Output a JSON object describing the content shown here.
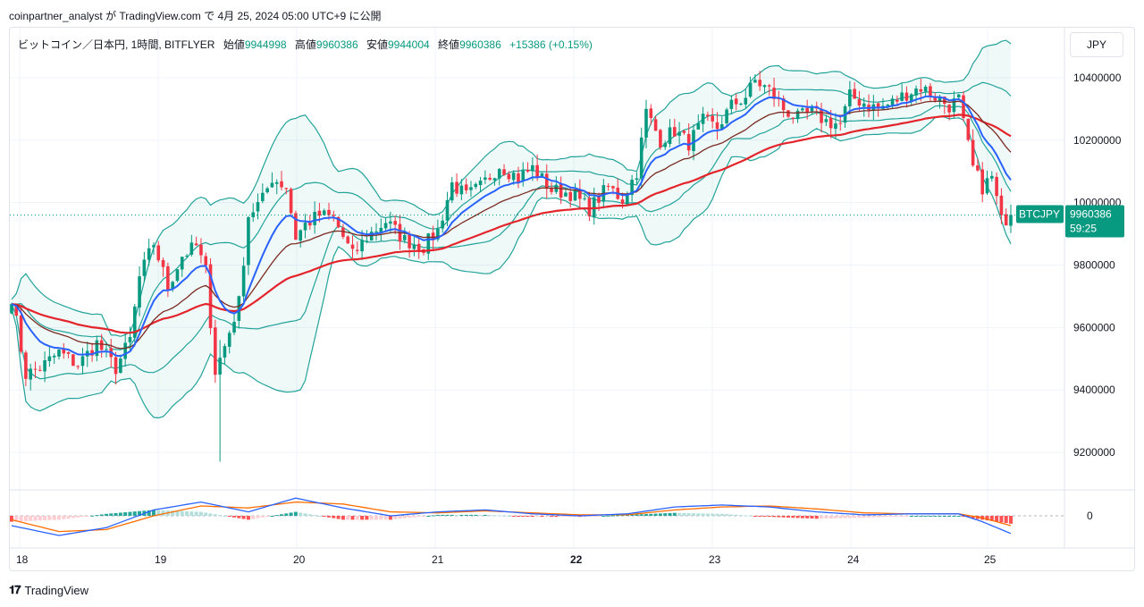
{
  "header": {
    "attribution": "coinpartner_analyst が TradingView.com で 4月 25, 2024 05:00 UTC+9 に公開"
  },
  "legend": {
    "title": "ビットコイン／日本円, 1時間, BITFLYER",
    "open_label": "始値",
    "open": "9944998",
    "high_label": "高値",
    "high": "9960386",
    "low_label": "安値",
    "low": "9944004",
    "close_label": "終値",
    "close": "9960386",
    "change": "+15386 (+0.15%)"
  },
  "currency_button": "JPY",
  "price_tag": {
    "symbol": "BTCJPY",
    "price": "9960386",
    "countdown": "59:25"
  },
  "footer": {
    "brand": "TradingView"
  },
  "colors": {
    "up": "#089981",
    "down": "#f23645",
    "band": "#22a39a",
    "ema_short": "#2962ff",
    "ema_mid": "#7b2b22",
    "ema_long": "#e3242b",
    "macd": "#2962ff",
    "signal": "#ff6d00"
  },
  "chart_data": [
    {
      "type": "candlestick",
      "symbol": "BTCJPY",
      "exchange": "BITFLYER",
      "timeframe": "1時間",
      "x_ticks": [
        "18",
        "19",
        "20",
        "21",
        "22",
        "23",
        "24",
        "25"
      ],
      "y_ticks": [
        "10400000",
        "10200000",
        "10000000",
        "9800000",
        "9600000",
        "9400000",
        "9200000"
      ],
      "ylim": [
        9080000,
        10560000
      ],
      "last_price": 9960386,
      "close_path": [
        [
          0,
          9700000
        ],
        [
          3,
          9450000
        ],
        [
          6,
          9470000
        ],
        [
          10,
          9520000
        ],
        [
          14,
          9480000
        ],
        [
          18,
          9550000
        ],
        [
          22,
          9470000
        ],
        [
          25,
          9560000
        ],
        [
          27,
          9760000
        ],
        [
          30,
          9870000
        ],
        [
          33,
          9730000
        ],
        [
          36,
          9830000
        ],
        [
          39,
          9860000
        ],
        [
          41,
          9780000
        ],
        [
          43,
          9460000
        ],
        [
          45,
          9540000
        ],
        [
          48,
          9680000
        ],
        [
          50,
          9960000
        ],
        [
          53,
          10010000
        ],
        [
          55,
          10080000
        ],
        [
          58,
          10050000
        ],
        [
          60,
          9890000
        ],
        [
          62,
          9930000
        ],
        [
          65,
          9960000
        ],
        [
          68,
          9950000
        ],
        [
          72,
          9830000
        ],
        [
          75,
          9890000
        ],
        [
          79,
          9940000
        ],
        [
          83,
          9880000
        ],
        [
          87,
          9860000
        ],
        [
          90,
          9910000
        ],
        [
          93,
          10060000
        ],
        [
          96,
          10020000
        ],
        [
          99,
          10050000
        ],
        [
          103,
          10120000
        ],
        [
          107,
          10080000
        ],
        [
          110,
          10110000
        ],
        [
          114,
          10040000
        ],
        [
          118,
          10030000
        ],
        [
          122,
          9980000
        ],
        [
          126,
          10050000
        ],
        [
          129,
          10010000
        ],
        [
          132,
          10100000
        ],
        [
          134,
          10290000
        ],
        [
          137,
          10200000
        ],
        [
          140,
          10230000
        ],
        [
          143,
          10190000
        ],
        [
          146,
          10260000
        ],
        [
          149,
          10240000
        ],
        [
          152,
          10310000
        ],
        [
          155,
          10340000
        ],
        [
          157,
          10390000
        ],
        [
          160,
          10360000
        ],
        [
          163,
          10300000
        ],
        [
          166,
          10270000
        ],
        [
          169,
          10290000
        ],
        [
          172,
          10260000
        ],
        [
          175,
          10250000
        ],
        [
          177,
          10340000
        ],
        [
          180,
          10320000
        ],
        [
          183,
          10300000
        ],
        [
          186,
          10320000
        ],
        [
          189,
          10350000
        ],
        [
          192,
          10370000
        ],
        [
          195,
          10340000
        ],
        [
          198,
          10310000
        ],
        [
          200,
          10330000
        ],
        [
          201,
          10250000
        ],
        [
          203,
          10110000
        ],
        [
          205,
          10050000
        ],
        [
          207,
          10080000
        ],
        [
          209,
          9940000
        ],
        [
          211,
          9960386
        ]
      ]
    },
    {
      "type": "macd",
      "y_ticks": [
        "0"
      ],
      "macd_path": [
        [
          0,
          -0.5
        ],
        [
          10,
          -1.0
        ],
        [
          20,
          -0.6
        ],
        [
          30,
          0.3
        ],
        [
          40,
          0.7
        ],
        [
          50,
          0.2
        ],
        [
          60,
          0.9
        ],
        [
          70,
          0.4
        ],
        [
          80,
          0.0
        ],
        [
          90,
          0.2
        ],
        [
          100,
          0.3
        ],
        [
          110,
          0.1
        ],
        [
          120,
          0.0
        ],
        [
          130,
          0.1
        ],
        [
          140,
          0.45
        ],
        [
          150,
          0.55
        ],
        [
          160,
          0.45
        ],
        [
          170,
          0.2
        ],
        [
          180,
          0.05
        ],
        [
          190,
          0.1
        ],
        [
          200,
          0.1
        ],
        [
          205,
          -0.3
        ],
        [
          211,
          -0.9
        ]
      ],
      "signal_path": [
        [
          0,
          -0.2
        ],
        [
          10,
          -0.8
        ],
        [
          20,
          -0.7
        ],
        [
          30,
          0.0
        ],
        [
          40,
          0.5
        ],
        [
          50,
          0.4
        ],
        [
          60,
          0.7
        ],
        [
          70,
          0.6
        ],
        [
          80,
          0.2
        ],
        [
          90,
          0.15
        ],
        [
          100,
          0.25
        ],
        [
          110,
          0.15
        ],
        [
          120,
          0.05
        ],
        [
          130,
          0.05
        ],
        [
          140,
          0.3
        ],
        [
          150,
          0.45
        ],
        [
          160,
          0.5
        ],
        [
          170,
          0.35
        ],
        [
          180,
          0.15
        ],
        [
          190,
          0.1
        ],
        [
          200,
          0.1
        ],
        [
          205,
          -0.1
        ],
        [
          211,
          -0.5
        ]
      ]
    }
  ]
}
